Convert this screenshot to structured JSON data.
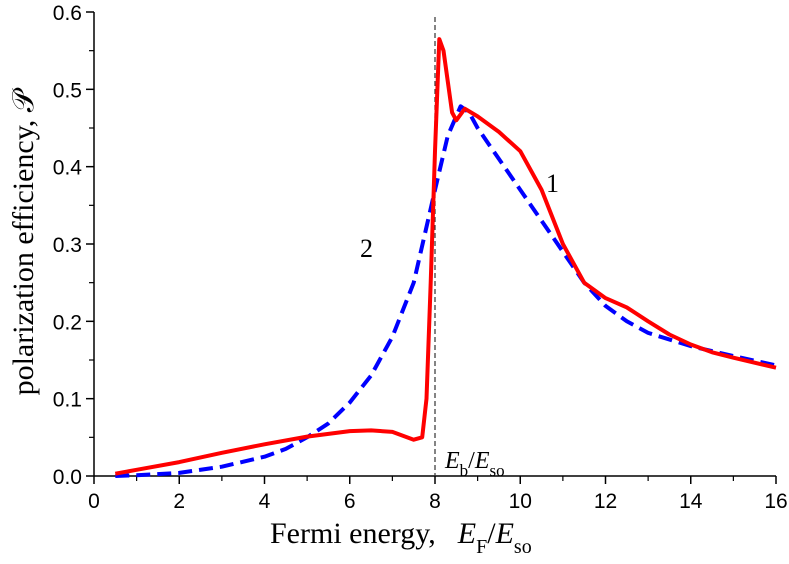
{
  "chart_data": {
    "type": "line",
    "xlabel": "Fermi energy,",
    "xlabel_math": {
      "main": "E",
      "sub": "F",
      "sep": "/",
      "main2": "E",
      "sub2": "so"
    },
    "ylabel": "polarization efficiency, 𝒫",
    "xlim": [
      0,
      16
    ],
    "ylim": [
      0,
      0.6
    ],
    "xticks": [
      "0",
      "2",
      "4",
      "6",
      "8",
      "10",
      "12",
      "14",
      "16"
    ],
    "yticks": [
      "0.0",
      "0.1",
      "0.2",
      "0.3",
      "0.4",
      "0.5",
      "0.6"
    ],
    "grid": false,
    "vline": {
      "x": 8,
      "label": {
        "main": "E",
        "sub": "b",
        "sep": "/",
        "main2": "E",
        "sub2": "so"
      }
    },
    "series": [
      {
        "name": "1",
        "color": "#ff0000",
        "style": "solid",
        "x": [
          0.5,
          1,
          2,
          3,
          4,
          5,
          6,
          6.5,
          7,
          7.5,
          7.7,
          7.8,
          7.9,
          8.0,
          8.1,
          8.2,
          8.4,
          8.5,
          8.7,
          9,
          9.5,
          10,
          10.5,
          11,
          11.5,
          12,
          12.5,
          13,
          13.5,
          14,
          14.5,
          15,
          16
        ],
        "y": [
          0.003,
          0.008,
          0.018,
          0.03,
          0.041,
          0.051,
          0.058,
          0.059,
          0.057,
          0.047,
          0.05,
          0.1,
          0.25,
          0.42,
          0.565,
          0.55,
          0.47,
          0.46,
          0.475,
          0.465,
          0.445,
          0.42,
          0.37,
          0.3,
          0.25,
          0.23,
          0.218,
          0.2,
          0.183,
          0.17,
          0.16,
          0.153,
          0.14
        ]
      },
      {
        "name": "2",
        "color": "#0000ff",
        "style": "dashed",
        "x": [
          0.5,
          1,
          2,
          3,
          4,
          4.5,
          5,
          5.5,
          6,
          6.5,
          7,
          7.5,
          8,
          8.3,
          8.6,
          8.8,
          9,
          9.5,
          10,
          10.5,
          11,
          11.5,
          12,
          12.5,
          13,
          14,
          15,
          16
        ],
        "y": [
          0,
          0.001,
          0.004,
          0.012,
          0.025,
          0.035,
          0.05,
          0.068,
          0.095,
          0.13,
          0.18,
          0.25,
          0.37,
          0.44,
          0.478,
          0.47,
          0.45,
          0.41,
          0.37,
          0.33,
          0.29,
          0.25,
          0.22,
          0.2,
          0.185,
          0.168,
          0.155,
          0.143
        ]
      }
    ]
  }
}
